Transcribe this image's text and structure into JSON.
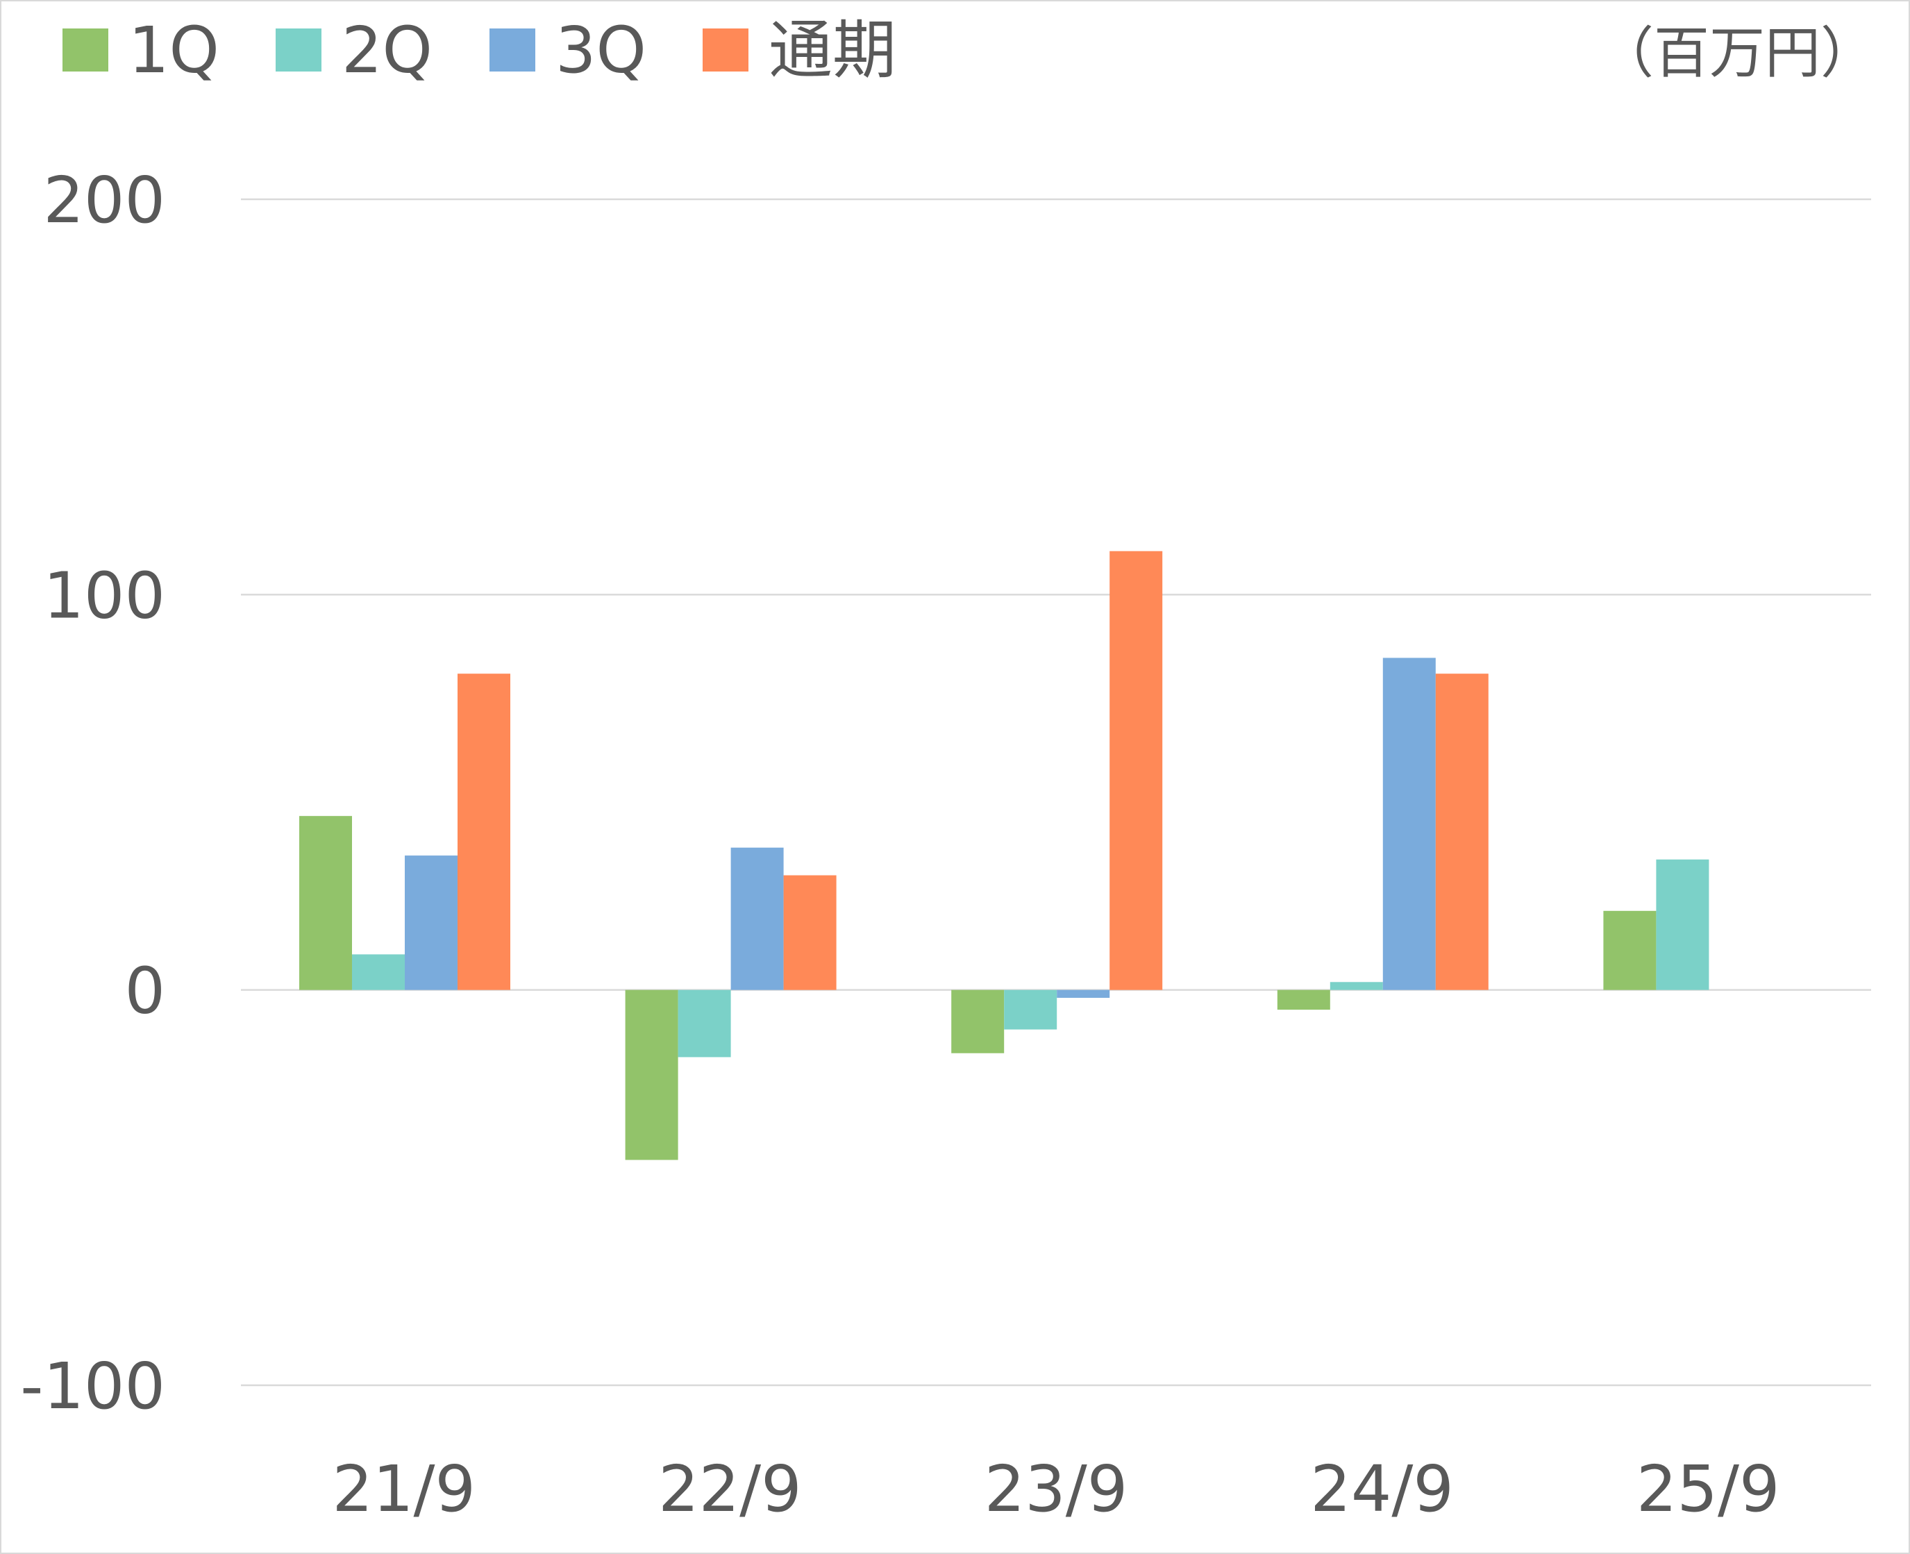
{
  "chart_data": {
    "type": "bar",
    "unit": "（百万円）",
    "categories": [
      "21/9",
      "22/9",
      "23/9",
      "24/9",
      "25/9"
    ],
    "ylim": [
      -100,
      200
    ],
    "yticks": [
      200,
      100,
      0,
      -100
    ],
    "grid": true,
    "legend_position": "top-left",
    "series": [
      {
        "name": "1Q",
        "color": "#92c36a",
        "values": [
          44,
          -43,
          -16,
          -5,
          20
        ]
      },
      {
        "name": "2Q",
        "color": "#7bd1c8",
        "values": [
          9,
          -17,
          -10,
          2,
          33
        ]
      },
      {
        "name": "3Q",
        "color": "#7aabdc",
        "values": [
          34,
          36,
          -2,
          84,
          null
        ]
      },
      {
        "name": "通期",
        "color": "#ff8957",
        "values": [
          80,
          29,
          111,
          80,
          null
        ]
      }
    ]
  }
}
